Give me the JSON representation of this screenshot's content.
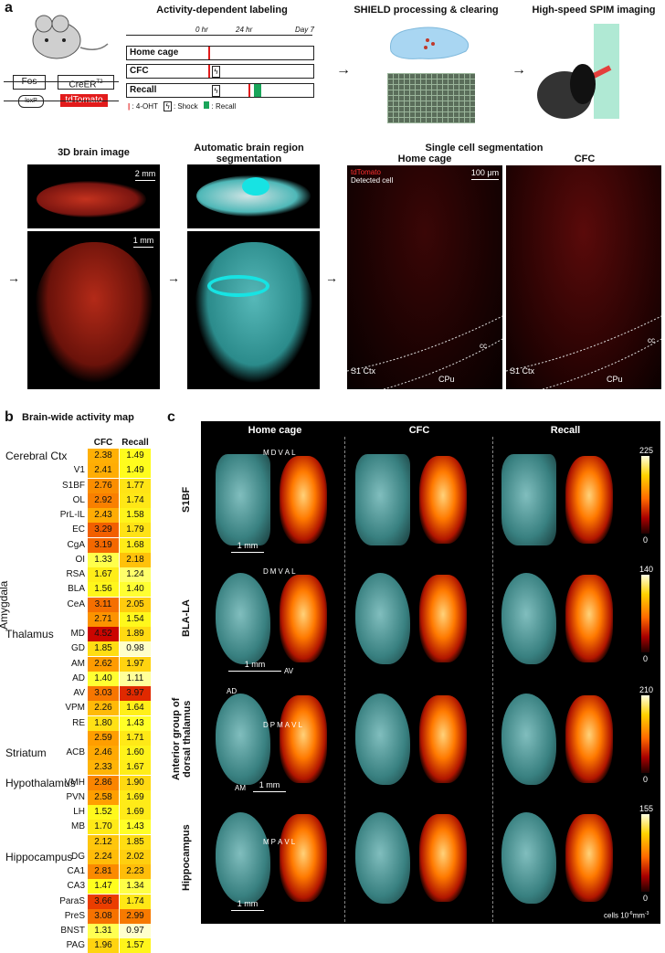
{
  "panel_a": {
    "label": "a",
    "activity_title": "Activity-dependent labeling",
    "shield_title": "SHIELD processing & clearing",
    "spim_title": "High-speed SPIM imaging",
    "genes": {
      "fos": "Fos",
      "creer": "CreER",
      "creer_sup": "T2",
      "loxp": "loxP",
      "tdtomato": "tdTomato"
    },
    "timeline_ticks": [
      "0 hr",
      "24 hr",
      "Day 7"
    ],
    "timeline_rows": [
      "Home cage",
      "CFC",
      "Recall"
    ],
    "legend": {
      "ohtt": ": 4-OHT",
      "shock": ": Shock",
      "recall": ": Recall"
    },
    "images": {
      "brain3d_title": "3D brain image",
      "scale_2mm": "2 mm",
      "scale_1mm": "1 mm",
      "segmentation_title": "Automatic brain region segmentation",
      "single_cell_title": "Single cell segmentation",
      "home_cage": "Home cage",
      "cfc": "CFC",
      "legend_tdtomato": "tdTomato",
      "legend_detected": "Detected cell",
      "scale_100um": "100 μm",
      "cc": "cc",
      "s1ctx": "S1 Ctx",
      "cpu": "CPu"
    }
  },
  "panel_b": {
    "label": "b",
    "title": "Brain-wide activity map",
    "col_headers": [
      "CFC",
      "Recall"
    ],
    "groups": [
      {
        "name": "Cerebral Ctx",
        "row": 0
      },
      {
        "name": "Amygdala",
        "row": 10
      },
      {
        "name": "Thalamus",
        "row": 12
      },
      {
        "name": "Striatum",
        "row": 20
      },
      {
        "name": "Hypothalamus",
        "row": 22
      },
      {
        "name": "Hippocampus",
        "row": 27
      }
    ],
    "rows": [
      {
        "name": "",
        "cfc": "2.38",
        "recall": "1.49"
      },
      {
        "name": "V1",
        "cfc": "2.41",
        "recall": "1.49"
      },
      {
        "name": "S1BF",
        "cfc": "2.76",
        "recall": "1.77"
      },
      {
        "name": "OL",
        "cfc": "2.92",
        "recall": "1.74"
      },
      {
        "name": "PrL-IL",
        "cfc": "2.43",
        "recall": "1.58"
      },
      {
        "name": "EC",
        "cfc": "3.29",
        "recall": "1.79"
      },
      {
        "name": "CgA",
        "cfc": "3.19",
        "recall": "1.68"
      },
      {
        "name": "OI",
        "cfc": "1.33",
        "recall": "2.18"
      },
      {
        "name": "RSA",
        "cfc": "1.67",
        "recall": "1.24"
      },
      {
        "name": "BLA",
        "cfc": "1.56",
        "recall": "1.40"
      },
      {
        "name": "CeA",
        "cfc": "3.11",
        "recall": "2.05"
      },
      {
        "name": "",
        "cfc": "2.71",
        "recall": "1.54"
      },
      {
        "name": "MD",
        "cfc": "4.52",
        "recall": "1.89"
      },
      {
        "name": "GD",
        "cfc": "1.85",
        "recall": "0.98"
      },
      {
        "name": "AM",
        "cfc": "2.62",
        "recall": "1.97"
      },
      {
        "name": "AD",
        "cfc": "1.40",
        "recall": "1.11"
      },
      {
        "name": "AV",
        "cfc": "3.03",
        "recall": "3.97"
      },
      {
        "name": "VPM",
        "cfc": "2.26",
        "recall": "1.64"
      },
      {
        "name": "RE",
        "cfc": "1.80",
        "recall": "1.43"
      },
      {
        "name": "",
        "cfc": "2.59",
        "recall": "1.71"
      },
      {
        "name": "ACB",
        "cfc": "2.46",
        "recall": "1.60"
      },
      {
        "name": "",
        "cfc": "2.33",
        "recall": "1.67"
      },
      {
        "name": "VMH",
        "cfc": "2.86",
        "recall": "1.90"
      },
      {
        "name": "PVN",
        "cfc": "2.58",
        "recall": "1.69"
      },
      {
        "name": "LH",
        "cfc": "1.52",
        "recall": "1.69"
      },
      {
        "name": "MB",
        "cfc": "1.70",
        "recall": "1.43"
      },
      {
        "name": "",
        "cfc": "2.12",
        "recall": "1.85"
      },
      {
        "name": "DG",
        "cfc": "2.24",
        "recall": "2.02"
      },
      {
        "name": "CA1",
        "cfc": "2.81",
        "recall": "2.23"
      },
      {
        "name": "CA3",
        "cfc": "1.47",
        "recall": "1.34"
      },
      {
        "name": "ParaS",
        "cfc": "3.66",
        "recall": "1.74"
      },
      {
        "name": "PreS",
        "cfc": "3.08",
        "recall": "2.99"
      },
      {
        "name": "BNST",
        "cfc": "1.31",
        "recall": "0.97"
      },
      {
        "name": "PAG",
        "cfc": "1.96",
        "recall": "1.57"
      }
    ]
  },
  "panel_c": {
    "label": "c",
    "col_headers": [
      "Home cage",
      "CFC",
      "Recall"
    ],
    "rows": [
      {
        "name": "S1BF",
        "cbmax": "225",
        "cbmin": "0",
        "axes": [
          "M",
          "D",
          "V",
          "A",
          "L"
        ]
      },
      {
        "name": "BLA-LA",
        "cbmax": "140",
        "cbmin": "0",
        "axes": [
          "D",
          "M",
          "V",
          "A",
          "L"
        ]
      },
      {
        "name": "Anterior group of dorsal thalamus",
        "cbmax": "210",
        "cbmin": "0",
        "axes": [
          "D",
          "P",
          "M",
          "A",
          "V",
          "L"
        ]
      },
      {
        "name": "Hippocampus",
        "cbmax": "155",
        "cbmin": "0",
        "axes": [
          "M",
          "P",
          "A",
          "V",
          "L"
        ]
      }
    ],
    "scale_1mm": "1 mm",
    "thalamus_regions": [
      "AD",
      "AV",
      "AM"
    ],
    "units": "cells 10",
    "units_exp": "-6",
    "units_tail": "mm",
    "units_tail_exp": "-3"
  }
}
